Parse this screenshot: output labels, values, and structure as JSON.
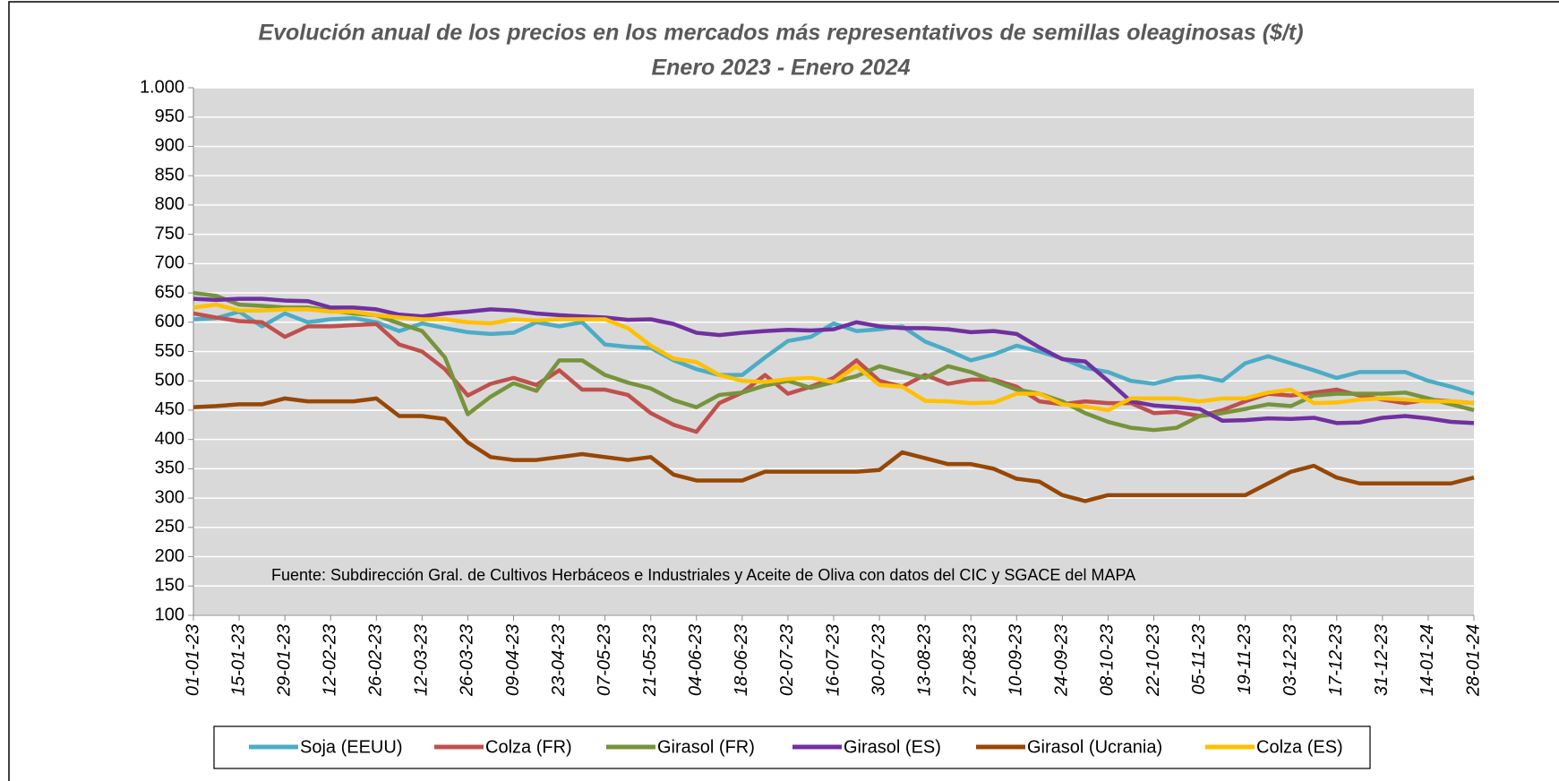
{
  "chart_data": {
    "type": "line",
    "title": "Evolución anual de los precios en los mercados más representativos de semillas oleaginosas  ($/t)",
    "subtitle": "Enero 2023 - Enero 2024",
    "annotation": "Fuente: Subdirección Gral. de Cultivos Herbáceos e Industriales y Aceite de Oliva con datos del CIC y SGACE del MAPA",
    "categories": [
      "01-01-23",
      null,
      "15-01-23",
      null,
      "29-01-23",
      null,
      "12-02-23",
      null,
      "26-02-23",
      null,
      "12-03-23",
      null,
      "26-03-23",
      null,
      "09-04-23",
      null,
      "23-04-23",
      null,
      "07-05-23",
      null,
      "21-05-23",
      null,
      "04-06-23",
      null,
      "18-06-23",
      null,
      "02-07-23",
      null,
      "16-07-23",
      null,
      "30-07-23",
      null,
      "13-08-23",
      null,
      "27-08-23",
      null,
      "10-09-23",
      null,
      "24-09-23",
      null,
      "08-10-23",
      null,
      "22-10-23",
      null,
      "05-11-23",
      null,
      "19-11-23",
      null,
      "03-12-23",
      null,
      "17-12-23",
      null,
      "31-12-23",
      null,
      "14-01-24",
      null,
      "28-01-24"
    ],
    "series": [
      {
        "name": "Soja (EEUU)",
        "color": "#4bacc6",
        "values": [
          605,
          607,
          618,
          593,
          615,
          600,
          605,
          607,
          600,
          585,
          598,
          590,
          583,
          580,
          582,
          600,
          593,
          600,
          562,
          558,
          556,
          535,
          520,
          510,
          510,
          540,
          568,
          575,
          598,
          585,
          588,
          593,
          567,
          552,
          535,
          545,
          560,
          550,
          538,
          522,
          515,
          500,
          495,
          505,
          508,
          500,
          530,
          542,
          530,
          518,
          505,
          515,
          515,
          515,
          500,
          490,
          478
        ]
      },
      {
        "name": "Colza (FR)",
        "color": "#c0504d",
        "values": [
          615,
          608,
          602,
          600,
          575,
          593,
          593,
          595,
          597,
          562,
          550,
          520,
          475,
          495,
          505,
          493,
          518,
          485,
          485,
          476,
          445,
          425,
          413,
          462,
          480,
          510,
          478,
          490,
          505,
          535,
          500,
          490,
          510,
          495,
          502,
          502,
          490,
          465,
          460,
          465,
          462,
          462,
          445,
          447,
          440,
          450,
          465,
          478,
          475,
          480,
          485,
          475,
          468,
          462,
          468,
          465,
          462
        ]
      },
      {
        "name": "Girasol (FR)",
        "color": "#77933c",
        "values": [
          650,
          645,
          630,
          628,
          625,
          625,
          620,
          615,
          612,
          598,
          585,
          540,
          443,
          473,
          496,
          483,
          535,
          535,
          510,
          497,
          487,
          467,
          455,
          476,
          480,
          492,
          500,
          488,
          498,
          508,
          525,
          515,
          505,
          525,
          515,
          500,
          485,
          478,
          465,
          445,
          430,
          420,
          416,
          420,
          440,
          445,
          452,
          460,
          457,
          475,
          478,
          478,
          478,
          480,
          470,
          460,
          450
        ]
      },
      {
        "name": "Girasol (ES)",
        "color": "#7030a0",
        "values": [
          640,
          638,
          640,
          640,
          637,
          636,
          625,
          625,
          622,
          613,
          610,
          615,
          618,
          622,
          620,
          615,
          612,
          610,
          608,
          604,
          605,
          597,
          582,
          578,
          582,
          585,
          587,
          586,
          588,
          600,
          593,
          590,
          590,
          588,
          583,
          585,
          580,
          557,
          537,
          533,
          500,
          465,
          458,
          455,
          452,
          432,
          433,
          436,
          435,
          437,
          428,
          429,
          437,
          440,
          436,
          430,
          428
        ]
      },
      {
        "name": "Girasol (Ucrania)",
        "color": "#974706",
        "values": [
          455,
          457,
          460,
          460,
          470,
          465,
          465,
          465,
          470,
          440,
          440,
          435,
          395,
          370,
          365,
          365,
          370,
          375,
          370,
          365,
          370,
          340,
          330,
          330,
          330,
          345,
          345,
          345,
          345,
          345,
          348,
          378,
          368,
          358,
          358,
          350,
          333,
          328,
          305,
          295,
          305,
          305,
          305,
          305,
          305,
          305,
          305,
          325,
          345,
          355,
          335,
          325,
          325,
          325,
          325,
          325,
          335
        ]
      },
      {
        "name": "Colza (ES)",
        "color": "#ffc000",
        "values": [
          625,
          630,
          620,
          620,
          622,
          622,
          618,
          618,
          612,
          608,
          605,
          605,
          600,
          598,
          605,
          603,
          605,
          605,
          605,
          590,
          560,
          538,
          532,
          510,
          500,
          498,
          503,
          505,
          498,
          525,
          493,
          490,
          466,
          465,
          462,
          463,
          478,
          478,
          460,
          456,
          450,
          470,
          470,
          470,
          465,
          470,
          470,
          480,
          485,
          462,
          463,
          468,
          470,
          468,
          465,
          465,
          462
        ]
      }
    ],
    "ylim": [
      100,
      1000
    ],
    "yticks": [
      100,
      150,
      200,
      250,
      300,
      350,
      400,
      450,
      500,
      550,
      600,
      650,
      700,
      750,
      800,
      850,
      900,
      950,
      {
        "value": 1000,
        "label": "1.000"
      }
    ],
    "grid": true,
    "legend": "bottom"
  }
}
